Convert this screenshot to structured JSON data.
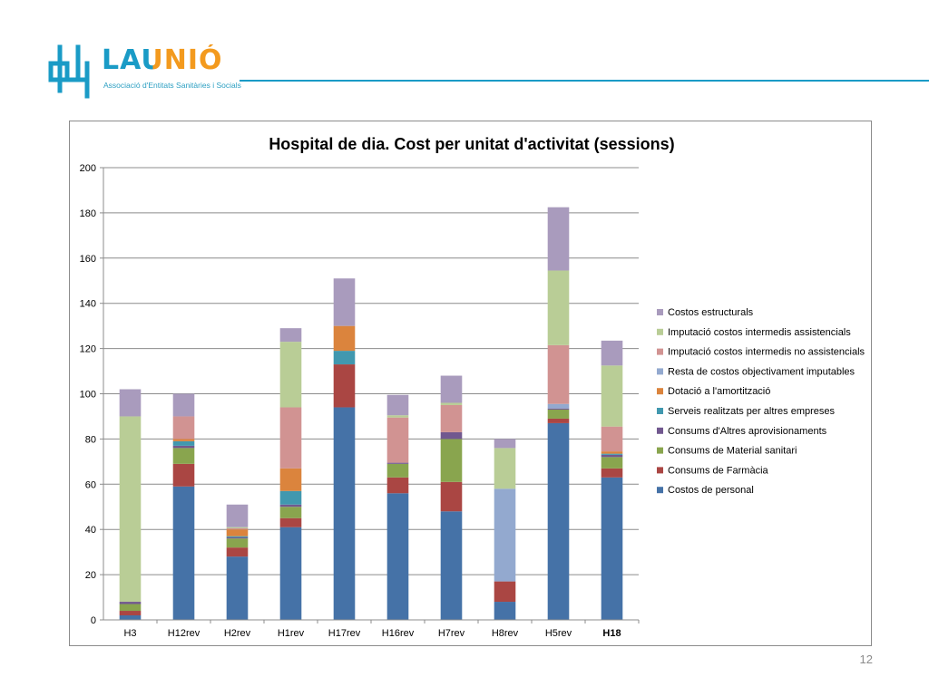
{
  "logo": {
    "word": "LAUNIÓ",
    "subtitle": "Associació d'Entitats Sanitàries i Socials",
    "colors": {
      "accent": "#1a9bc6",
      "warm": "#f39a1e"
    }
  },
  "page_number": "12",
  "chart_data": {
    "type": "bar",
    "stacked": true,
    "title": "Hospital de dia. Cost per unitat d'activitat (sessions)",
    "xlabel": "",
    "ylabel": "",
    "ylim": [
      0,
      200
    ],
    "yticks": [
      0,
      20,
      40,
      60,
      80,
      100,
      120,
      140,
      160,
      180,
      200
    ],
    "grid": true,
    "legend_position": "right",
    "categories": [
      "H3",
      "H12rev",
      "H2rev",
      "H1rev",
      "H17rev",
      "H16rev",
      "H7rev",
      "H8rev",
      "H5rev",
      "H18"
    ],
    "series": [
      {
        "name": "Costos de personal",
        "color": "#4572a7",
        "values": [
          2,
          59,
          28,
          41,
          94,
          56,
          48,
          8,
          87,
          63
        ]
      },
      {
        "name": "Consums de Farmàcia",
        "color": "#aa4643",
        "values": [
          2,
          10,
          4,
          4,
          19,
          7,
          13,
          9,
          2,
          4
        ]
      },
      {
        "name": "Consums de Material sanitari",
        "color": "#89a54e",
        "values": [
          3,
          7,
          4,
          5,
          0,
          6,
          19,
          0,
          4,
          5
        ]
      },
      {
        "name": "Consums d'Altres aprovisionaments",
        "color": "#71588f",
        "values": [
          1,
          1,
          0.5,
          1,
          0,
          0.5,
          3,
          0,
          0.5,
          1
        ]
      },
      {
        "name": "Serveis realitzats per altres empreses",
        "color": "#4198af",
        "values": [
          0,
          2,
          0.5,
          6,
          6,
          0,
          0,
          0,
          0,
          0.5
        ]
      },
      {
        "name": "Dotació a l'amortització",
        "color": "#db843d",
        "values": [
          0,
          1,
          3,
          10,
          11,
          0,
          0,
          0,
          0,
          1
        ]
      },
      {
        "name": "Resta de costos objectivament imputables",
        "color": "#93a9cf",
        "values": [
          0,
          0,
          0,
          0,
          0,
          0,
          0,
          41,
          2,
          0
        ]
      },
      {
        "name": "Imputació costos intermedis no assistencials",
        "color": "#d19392",
        "values": [
          0,
          10,
          0.5,
          27,
          0,
          20,
          12,
          0,
          26,
          11
        ]
      },
      {
        "name": "Imputació costos intermedis assistencials",
        "color": "#b9cd96",
        "values": [
          82,
          0,
          0.5,
          29,
          0,
          1,
          1,
          18,
          33,
          27
        ]
      },
      {
        "name": "Costos estructurals",
        "color": "#a99bbd",
        "values": [
          12,
          10,
          10,
          6,
          21,
          9,
          12,
          4,
          28,
          11
        ]
      }
    ]
  }
}
